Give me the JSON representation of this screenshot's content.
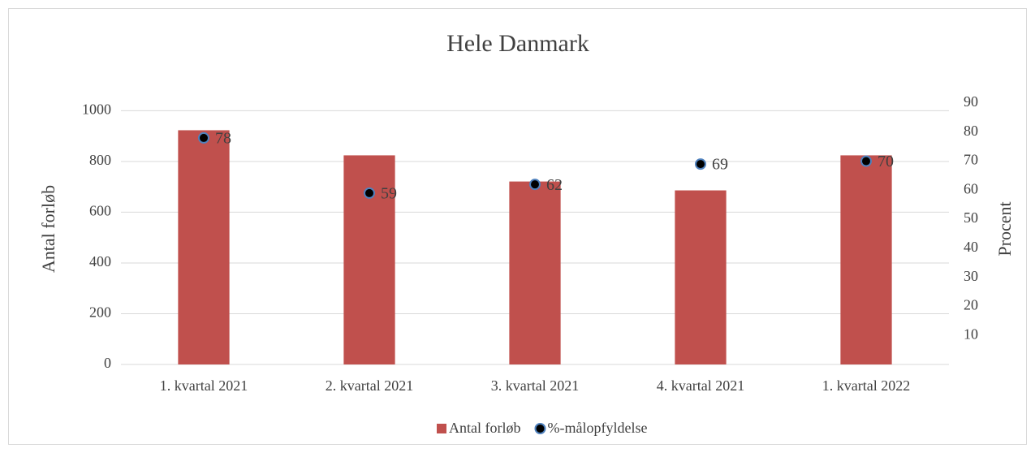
{
  "chart_data": {
    "type": "bar_line",
    "title": "Hele Danmark",
    "categories": [
      "1. kvartal 2021",
      "2. kvartal 2021",
      "3. kvartal 2021",
      "4. kvartal 2021",
      "1. kvartal 2022"
    ],
    "series": [
      {
        "name": "Antal forløb",
        "color": "#c0504d",
        "type": "bar",
        "values": [
          923,
          824,
          721,
          686,
          824
        ]
      },
      {
        "name": "%-målopfyldelse",
        "color": "#000000",
        "edge_color": "#4f81bd",
        "type": "point",
        "axis": "y2",
        "values": [
          78,
          59,
          62,
          69,
          70
        ]
      }
    ],
    "ylabel": "Antal forløb",
    "y2label": "Procent",
    "ylim": [
      0,
      1030
    ],
    "yticks": [
      0,
      200,
      400,
      600,
      800,
      1000
    ],
    "y2lim": [
      0,
      90
    ],
    "y2ticks": [
      10,
      20,
      30,
      40,
      50,
      60,
      70,
      80,
      90
    ],
    "grid": true,
    "legend": "bottom"
  }
}
